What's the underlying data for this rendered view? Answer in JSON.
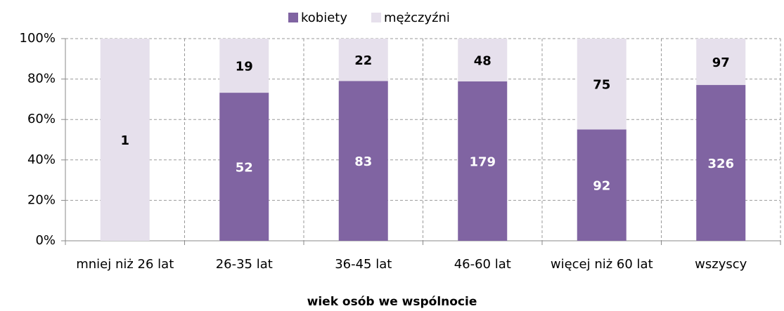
{
  "chart_data": {
    "type": "bar",
    "stacking": "percent",
    "x_label": "wiek osób we wspólnocie",
    "categories": [
      "mniej niż 26 lat",
      "26-35 lat",
      "36-45 lat",
      "46-60 lat",
      "więcej niż 60 lat",
      "wszyscy"
    ],
    "series": [
      {
        "name": "kobiety",
        "color": "#8064a2",
        "label_color": "#ffffff",
        "values": [
          0,
          52,
          83,
          179,
          92,
          326
        ],
        "value_labels": [
          null,
          "52",
          "83",
          "179",
          "92",
          "326"
        ]
      },
      {
        "name": "mężczyźni",
        "color": "#e6e0ec",
        "label_color": "#000000",
        "values": [
          1,
          19,
          22,
          48,
          75,
          97
        ]
      }
    ],
    "ylim": [
      0,
      100
    ],
    "yticks": [
      {
        "value": 0,
        "label": "0%"
      },
      {
        "value": 20,
        "label": "20%"
      },
      {
        "value": 40,
        "label": "40%"
      },
      {
        "value": 60,
        "label": "60%"
      },
      {
        "value": 80,
        "label": "80%"
      },
      {
        "value": 100,
        "label": "100%"
      }
    ],
    "grid": true,
    "legend": "top"
  }
}
